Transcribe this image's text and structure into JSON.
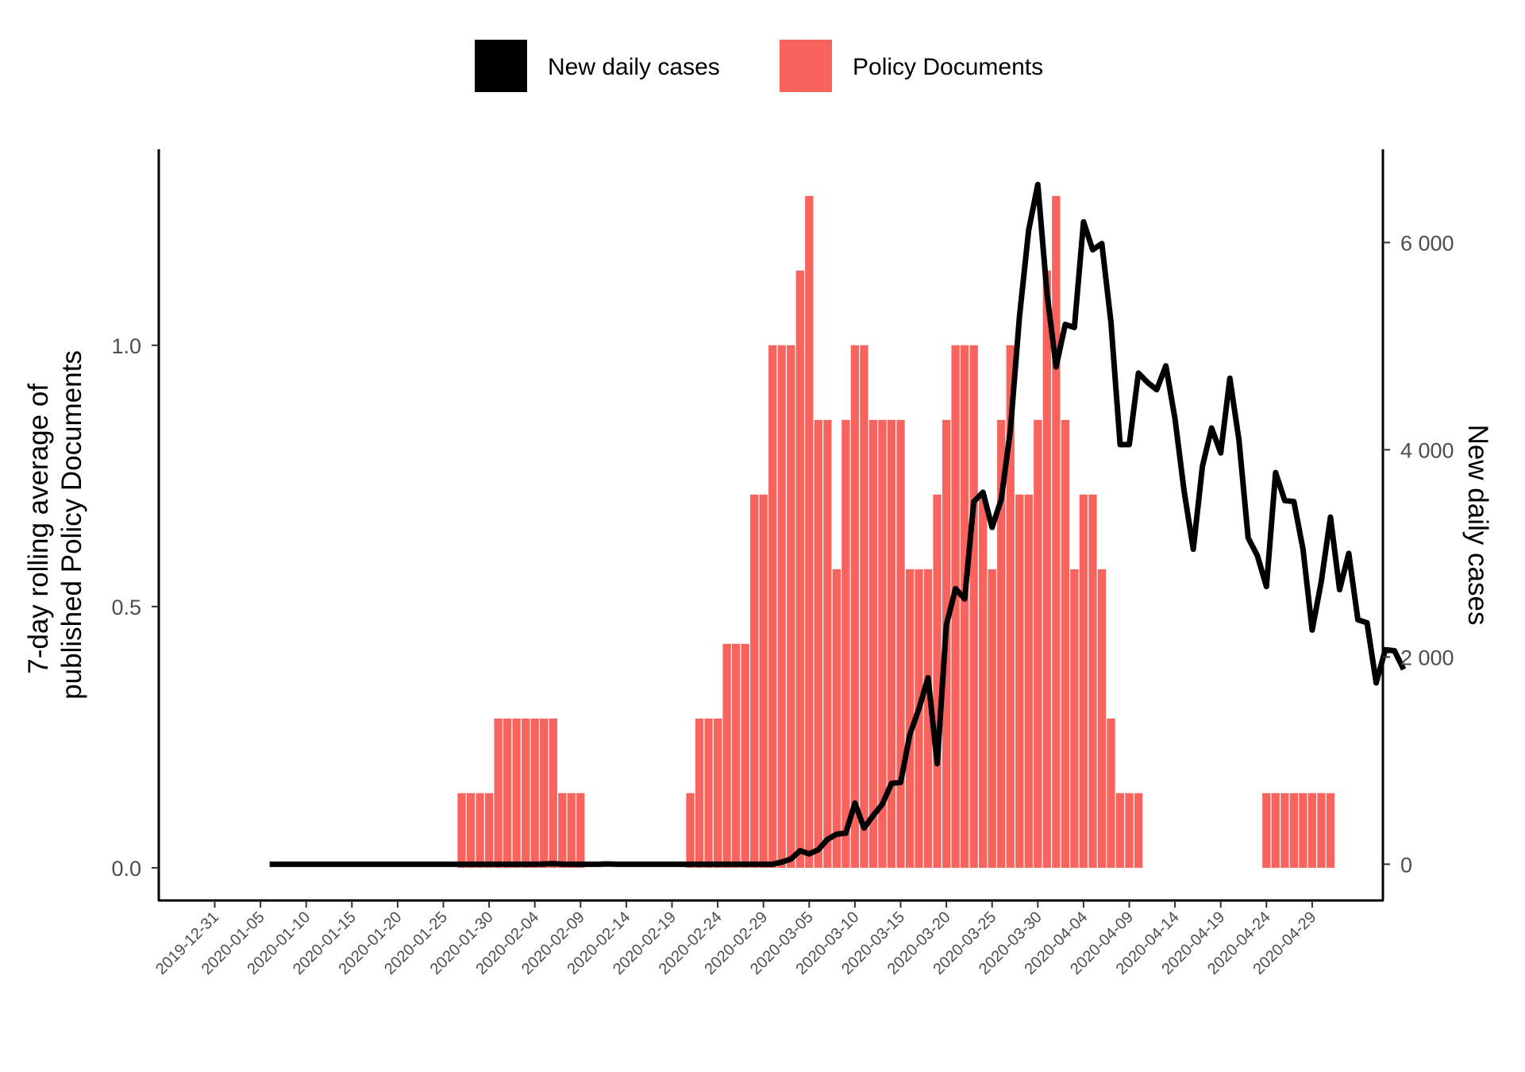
{
  "chart_data": {
    "type": "bar+line",
    "x_start_date": "2020-01-06",
    "x_ticks": [
      "2019-12-31",
      "2020-01-05",
      "2020-01-10",
      "2020-01-15",
      "2020-01-20",
      "2020-01-25",
      "2020-01-30",
      "2020-02-04",
      "2020-02-09",
      "2020-02-14",
      "2020-02-19",
      "2020-02-24",
      "2020-02-29",
      "2020-03-05",
      "2020-03-10",
      "2020-03-15",
      "2020-03-20",
      "2020-03-25",
      "2020-03-30",
      "2020-04-04",
      "2020-04-09",
      "2020-04-14",
      "2020-04-19",
      "2020-04-24",
      "2020-04-29"
    ],
    "y_left": {
      "label": "7-day rolling average of\npublished Policy Documents",
      "label_lines": [
        "7-day rolling average of",
        "published Policy Documents"
      ],
      "range": [
        -0.0625,
        1.375
      ],
      "ticks": [
        0.0,
        0.5,
        1.0
      ],
      "tick_labels": [
        "0.0",
        "0.5",
        "1.0"
      ]
    },
    "y_right": {
      "label": "New daily cases",
      "range": [
        -350,
        6900
      ],
      "ticks": [
        0,
        2000,
        4000,
        6000
      ],
      "tick_labels": [
        "0",
        "2 000",
        "4 000",
        "6 000"
      ]
    },
    "legend": {
      "position": "top",
      "items": [
        {
          "label": "New daily cases",
          "color": "#000000"
        },
        {
          "label": "Policy Documents",
          "color": "#f8635e"
        }
      ]
    },
    "series": [
      {
        "name": "Policy Documents",
        "type": "bar",
        "axis": "left",
        "color": "#f8635e",
        "start_date": "2020-01-27",
        "values": [
          0.1429,
          0.1429,
          0.1429,
          0.1429,
          0.2857,
          0.2857,
          0.2857,
          0.2857,
          0.2857,
          0.2857,
          0.2857,
          0.1429,
          0.1429,
          0.1429,
          0,
          0,
          0,
          0,
          0,
          0,
          0,
          0,
          0,
          0,
          0,
          0.1429,
          0.2857,
          0.2857,
          0.2857,
          0.4286,
          0.4286,
          0.4286,
          0.7143,
          0.7143,
          1.0,
          1.0,
          1.0,
          1.1429,
          1.2857,
          0.8571,
          0.8571,
          0.5714,
          0.8571,
          1.0,
          1.0,
          0.8571,
          0.8571,
          0.8571,
          0.8571,
          0.5714,
          0.5714,
          0.5714,
          0.7143,
          0.8571,
          1.0,
          1.0,
          1.0,
          0.7143,
          0.5714,
          0.8571,
          1.0,
          0.7143,
          0.7143,
          0.8571,
          1.1429,
          1.2857,
          0.8571,
          0.5714,
          0.7143,
          0.7143,
          0.5714,
          0.2857,
          0.1429,
          0.1429,
          0.1429,
          0,
          0,
          0,
          0,
          0,
          0,
          0,
          0,
          0,
          0,
          0,
          0,
          0,
          0.1429,
          0.1429,
          0.1429,
          0.1429,
          0.1429,
          0.1429,
          0.1429,
          0.1429
        ]
      },
      {
        "name": "New daily cases",
        "type": "line",
        "axis": "right",
        "color": "#000000",
        "start_date": "2020-01-06",
        "values": [
          0,
          0,
          0,
          0,
          0,
          0,
          0,
          0,
          0,
          0,
          0,
          0,
          0,
          0,
          0,
          0,
          0,
          0,
          0,
          0,
          0,
          0,
          0,
          0,
          0,
          0,
          0,
          0,
          0,
          0,
          2,
          5,
          1,
          0,
          0,
          0,
          0,
          3,
          0,
          0,
          0,
          0,
          0,
          0,
          0,
          0,
          0,
          0,
          0,
          0,
          0,
          0,
          0,
          0,
          0,
          0,
          20,
          50,
          130,
          100,
          140,
          240,
          290,
          300,
          590,
          350,
          470,
          580,
          780,
          790,
          1250,
          1500,
          1800,
          970,
          2310,
          2660,
          2560,
          3500,
          3590,
          3250,
          3520,
          4190,
          5290,
          6120,
          6560,
          5510,
          4800,
          5210,
          5180,
          6200,
          5930,
          5990,
          5230,
          4050,
          4050,
          4740,
          4650,
          4580,
          4810,
          4300,
          3600,
          3040,
          3840,
          4210,
          3970,
          4690,
          4090,
          3150,
          2980,
          2680,
          3780,
          3510,
          3500,
          3040,
          2260,
          2730,
          3350,
          2650,
          3000,
          2360,
          2330,
          1750,
          2070,
          2060,
          1880
        ]
      }
    ]
  }
}
